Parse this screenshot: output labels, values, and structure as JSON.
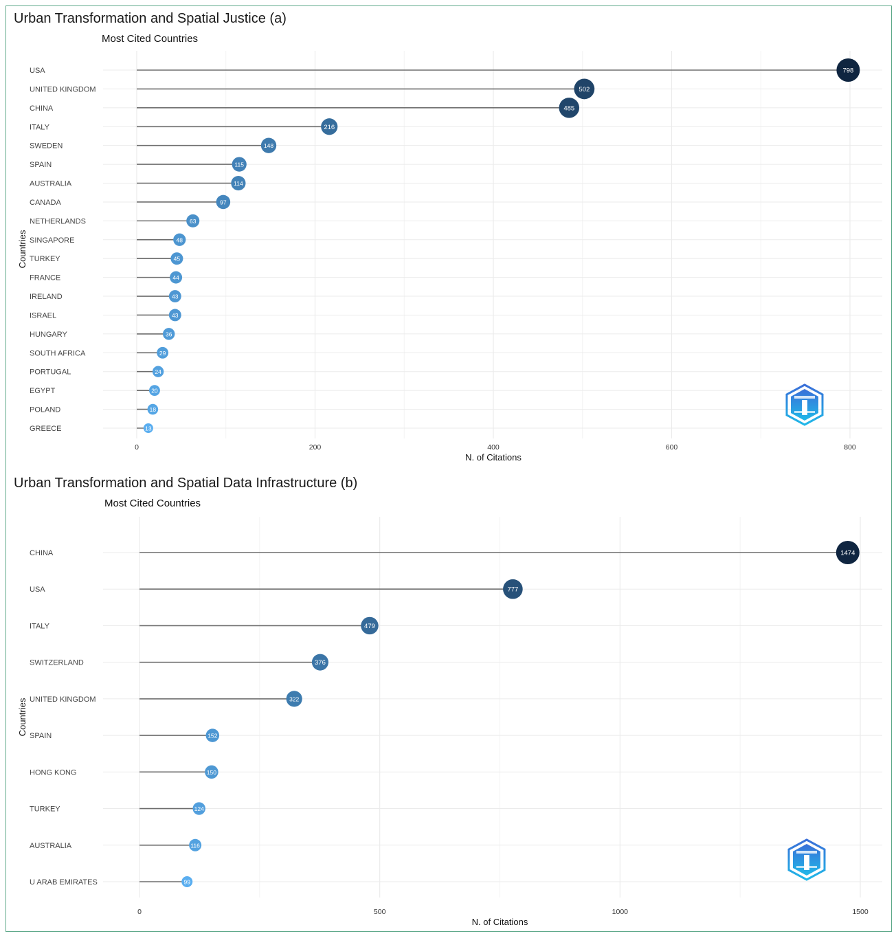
{
  "figure": {
    "panel_a_title": "Urban Transformation and Spatial Justice (a)",
    "panel_b_title": "Urban Transformation and Spatial Data Infrastructure (b)"
  },
  "chart_data": [
    {
      "type": "lollipop",
      "title": "Most Cited Countries",
      "xlabel": "N. of Citations",
      "ylabel": "Countries",
      "xlim": [
        0,
        800
      ],
      "xticks": [
        0,
        200,
        400,
        600,
        800
      ],
      "grid": true,
      "categories": [
        "USA",
        "UNITED KINGDOM",
        "CHINA",
        "ITALY",
        "SWEDEN",
        "SPAIN",
        "AUSTRALIA",
        "CANADA",
        "NETHERLANDS",
        "SINGAPORE",
        "TURKEY",
        "FRANCE",
        "IRELAND",
        "ISRAEL",
        "HUNGARY",
        "SOUTH AFRICA",
        "PORTUGAL",
        "EGYPT",
        "POLAND",
        "GREECE"
      ],
      "values": [
        798,
        502,
        485,
        216,
        148,
        115,
        114,
        97,
        63,
        48,
        45,
        44,
        43,
        43,
        36,
        29,
        24,
        20,
        18,
        13
      ],
      "value_labels": [
        "798",
        "502",
        "485",
        "216",
        "148",
        "115",
        "114",
        "97",
        "63",
        "48",
        "45",
        "44",
        "43",
        "43",
        "36",
        "29",
        "24",
        "20",
        "18",
        "13"
      ]
    },
    {
      "type": "lollipop",
      "title": "Most Cited Countries",
      "xlabel": "N. of Citations",
      "ylabel": "Countries",
      "xlim": [
        0,
        1500
      ],
      "xticks": [
        0,
        500,
        1000,
        1500
      ],
      "grid": true,
      "categories": [
        "CHINA",
        "USA",
        "ITALY",
        "SWITZERLAND",
        "UNITED KINGDOM",
        "SPAIN",
        "HONG KONG",
        "TURKEY",
        "AUSTRALIA",
        "U ARAB EMIRATES"
      ],
      "values": [
        1474,
        777,
        479,
        376,
        322,
        152,
        150,
        124,
        116,
        99
      ],
      "value_labels": [
        "1474",
        "777",
        "479",
        "376",
        "322",
        "152",
        "150",
        "124",
        "116",
        "99"
      ]
    }
  ],
  "colors": {
    "frame_border": "#5fa98a",
    "grid": "#ebebeb",
    "stem": "#6e6e6e",
    "dot_low": "#5aaef0",
    "dot_high": "#0f2540",
    "logo": "#2a7fd0"
  },
  "icons": {
    "logo": "hexagon-lighthouse-logo"
  }
}
